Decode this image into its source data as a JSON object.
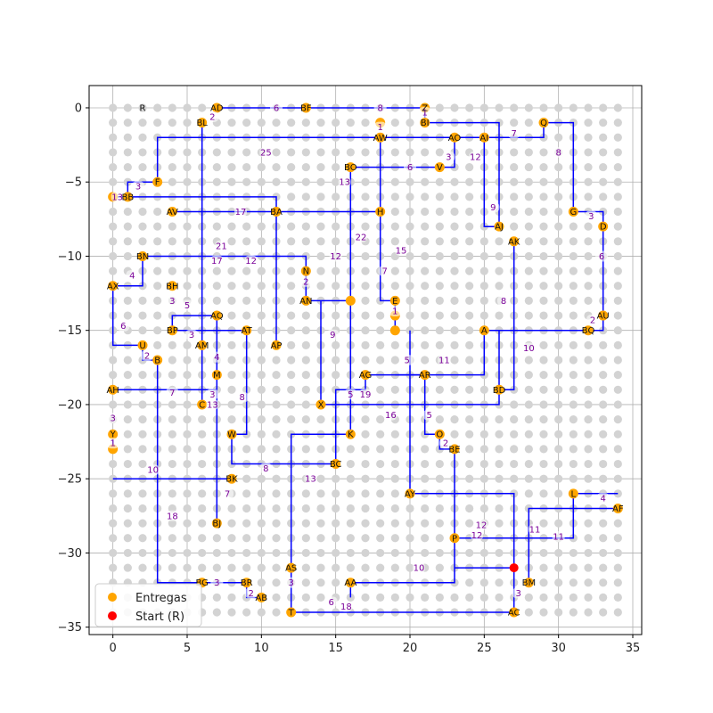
{
  "chart_data": {
    "type": "scatter",
    "title": "",
    "xlabel": "",
    "ylabel": "",
    "xlim": [
      -1.6,
      35.6
    ],
    "ylim": [
      -35.5,
      1.5
    ],
    "x_ticks": [
      0,
      5,
      10,
      15,
      20,
      25,
      30,
      35
    ],
    "y_ticks": [
      0,
      -5,
      -10,
      -15,
      -20,
      -25,
      -30,
      -35
    ],
    "grid": true,
    "legend_position": "lower-left",
    "colors": {
      "route": "#0000ff",
      "delivery": "#ffa500",
      "start": "#ff0000",
      "grid_dot": "#d3d3d3",
      "edge_label": "#7a0099"
    },
    "legend": [
      {
        "label": "Entregas",
        "color": "#ffa500"
      },
      {
        "label": "Start (R)",
        "color": "#ff0000"
      }
    ],
    "start": {
      "name": "R",
      "x": 27,
      "y": -31
    },
    "start_label": {
      "text": "R",
      "x": 2,
      "y": 0
    },
    "points": [
      {
        "name": "AD",
        "x": 7,
        "y": 0
      },
      {
        "name": "BF",
        "x": 13,
        "y": 0
      },
      {
        "name": "Z",
        "x": 21,
        "y": 0
      },
      {
        "name": "BL",
        "x": 6,
        "y": -1
      },
      {
        "name": "BI",
        "x": 21,
        "y": -1
      },
      {
        "name": "Q",
        "x": 29,
        "y": -1
      },
      {
        "name": "AW",
        "x": 18,
        "y": -2
      },
      {
        "name": "AO",
        "x": 23,
        "y": -2
      },
      {
        "name": "AI",
        "x": 25,
        "y": -2
      },
      {
        "name": "BO",
        "x": 16,
        "y": -4
      },
      {
        "name": "V",
        "x": 22,
        "y": -4
      },
      {
        "name": "F",
        "x": 3,
        "y": -5
      },
      {
        "name": "BB",
        "x": 1,
        "y": -6
      },
      {
        "name": "AV",
        "x": 4,
        "y": -7
      },
      {
        "name": "BA",
        "x": 11,
        "y": -7
      },
      {
        "name": "H",
        "x": 18,
        "y": -7
      },
      {
        "name": "G",
        "x": 31,
        "y": -7
      },
      {
        "name": "D",
        "x": 33,
        "y": -8
      },
      {
        "name": "AJ",
        "x": 26,
        "y": -8
      },
      {
        "name": "AK",
        "x": 27,
        "y": -9
      },
      {
        "name": "BN",
        "x": 2,
        "y": -10
      },
      {
        "name": "N",
        "x": 13,
        "y": -11
      },
      {
        "name": "AX",
        "x": 0,
        "y": -12
      },
      {
        "name": "BH",
        "x": 4,
        "y": -12
      },
      {
        "name": "AN",
        "x": 13,
        "y": -13
      },
      {
        "name": "E",
        "x": 19,
        "y": -13
      },
      {
        "name": "AQ",
        "x": 7,
        "y": -14
      },
      {
        "name": "AU",
        "x": 33,
        "y": -14
      },
      {
        "name": "BP",
        "x": 4,
        "y": -15
      },
      {
        "name": "AT",
        "x": 9,
        "y": -15
      },
      {
        "name": "A",
        "x": 25,
        "y": -15
      },
      {
        "name": "BQ",
        "x": 32,
        "y": -15
      },
      {
        "name": "U",
        "x": 2,
        "y": -16
      },
      {
        "name": "AM",
        "x": 6,
        "y": -16
      },
      {
        "name": "AP",
        "x": 11,
        "y": -16
      },
      {
        "name": "B",
        "x": 3,
        "y": -17
      },
      {
        "name": "M",
        "x": 7,
        "y": -18
      },
      {
        "name": "AG",
        "x": 17,
        "y": -18
      },
      {
        "name": "AR",
        "x": 21,
        "y": -18
      },
      {
        "name": "AH",
        "x": 0,
        "y": -19
      },
      {
        "name": "BD",
        "x": 26,
        "y": -19
      },
      {
        "name": "C",
        "x": 6,
        "y": -20
      },
      {
        "name": "X",
        "x": 14,
        "y": -20
      },
      {
        "name": "Y",
        "x": 0,
        "y": -22
      },
      {
        "name": "W",
        "x": 8,
        "y": -22
      },
      {
        "name": "K",
        "x": 16,
        "y": -22
      },
      {
        "name": "O",
        "x": 22,
        "y": -22
      },
      {
        "name": "BE",
        "x": 23,
        "y": -23
      },
      {
        "name": "BC",
        "x": 15,
        "y": -24
      },
      {
        "name": "BK",
        "x": 8,
        "y": -25
      },
      {
        "name": "AY",
        "x": 20,
        "y": -26
      },
      {
        "name": "L",
        "x": 31,
        "y": -26
      },
      {
        "name": "AF",
        "x": 34,
        "y": -27
      },
      {
        "name": "BJ",
        "x": 7,
        "y": -28
      },
      {
        "name": "P",
        "x": 23,
        "y": -29
      },
      {
        "name": "AS",
        "x": 12,
        "y": -31
      },
      {
        "name": "BG",
        "x": 6,
        "y": -32
      },
      {
        "name": "BR",
        "x": 9,
        "y": -32
      },
      {
        "name": "AA",
        "x": 16,
        "y": -32
      },
      {
        "name": "BM",
        "x": 28,
        "y": -32
      },
      {
        "name": "AB",
        "x": 10,
        "y": -33
      },
      {
        "name": "T",
        "x": 12,
        "y": -34
      },
      {
        "name": "AC",
        "x": 27,
        "y": -34
      },
      {
        "name": "",
        "x": 0,
        "y": -6
      },
      {
        "name": "",
        "x": 18,
        "y": -1
      },
      {
        "name": "",
        "x": 16,
        "y": -13
      },
      {
        "name": "",
        "x": 0,
        "y": -23
      },
      {
        "name": "",
        "x": 19,
        "y": -14
      },
      {
        "name": "",
        "x": 19,
        "y": -15
      }
    ],
    "route": [
      [
        [
          7,
          0
        ],
        [
          21,
          0
        ],
        [
          21,
          -1
        ],
        [
          26,
          -1
        ],
        [
          26,
          -8
        ],
        [
          25,
          -8
        ],
        [
          25,
          -2
        ]
      ],
      [
        [
          3,
          -5
        ],
        [
          3,
          -2
        ],
        [
          29,
          -2
        ],
        [
          29,
          -1
        ],
        [
          31,
          -1
        ],
        [
          31,
          -7
        ],
        [
          33,
          -7
        ],
        [
          33,
          -14
        ],
        [
          33,
          -15
        ],
        [
          25,
          -15
        ],
        [
          25,
          -18
        ],
        [
          17,
          -18
        ],
        [
          17,
          -19
        ],
        [
          15,
          -19
        ],
        [
          15,
          -24
        ],
        [
          8,
          -24
        ],
        [
          8,
          -22
        ],
        [
          9,
          -22
        ],
        [
          9,
          -15
        ],
        [
          4,
          -15
        ],
        [
          4,
          -14
        ],
        [
          7,
          -14
        ],
        [
          7,
          -28
        ]
      ],
      [
        [
          1,
          -6
        ],
        [
          1,
          -5
        ],
        [
          3,
          -5
        ]
      ],
      [
        [
          0,
          -6
        ],
        [
          11,
          -6
        ],
        [
          11,
          -16
        ]
      ],
      [
        [
          4,
          -7
        ],
        [
          18,
          -7
        ],
        [
          18,
          -13
        ],
        [
          19,
          -13
        ],
        [
          19,
          -15
        ]
      ],
      [
        [
          6,
          -1
        ],
        [
          6,
          -20
        ]
      ],
      [
        [
          16,
          -4
        ],
        [
          23,
          -4
        ],
        [
          23,
          -2
        ]
      ],
      [
        [
          18,
          -2
        ],
        [
          18,
          -7
        ]
      ],
      [
        [
          16,
          -4
        ],
        [
          16,
          -22
        ],
        [
          12,
          -22
        ],
        [
          12,
          -34
        ],
        [
          27,
          -34
        ],
        [
          27,
          -31
        ]
      ],
      [
        [
          2,
          -10
        ],
        [
          13,
          -10
        ],
        [
          13,
          -13
        ],
        [
          16,
          -13
        ]
      ],
      [
        [
          14,
          -13
        ],
        [
          14,
          -20
        ],
        [
          26,
          -20
        ],
        [
          26,
          -15
        ]
      ],
      [
        [
          0,
          -12
        ],
        [
          2,
          -12
        ],
        [
          2,
          -10
        ]
      ],
      [
        [
          0,
          -12
        ],
        [
          0,
          -16
        ],
        [
          2,
          -16
        ],
        [
          2,
          -17
        ],
        [
          3,
          -17
        ],
        [
          3,
          -32
        ],
        [
          9,
          -32
        ],
        [
          9,
          -33
        ],
        [
          10,
          -33
        ]
      ],
      [
        [
          20,
          -15
        ],
        [
          20,
          -26
        ],
        [
          27,
          -26
        ],
        [
          27,
          -31
        ]
      ],
      [
        [
          19,
          -18
        ],
        [
          21,
          -18
        ],
        [
          21,
          -22
        ],
        [
          22,
          -22
        ],
        [
          22,
          -23
        ],
        [
          23,
          -23
        ],
        [
          23,
          -32
        ],
        [
          16,
          -32
        ],
        [
          16,
          -33
        ]
      ],
      [
        [
          27,
          -9
        ],
        [
          27,
          -19
        ],
        [
          26,
          -19
        ]
      ],
      [
        [
          0,
          -19
        ],
        [
          7,
          -19
        ]
      ],
      [
        [
          0,
          -22
        ],
        [
          0,
          -23
        ]
      ],
      [
        [
          0,
          -25
        ],
        [
          8,
          -25
        ]
      ],
      [
        [
          34,
          -26
        ],
        [
          31,
          -26
        ],
        [
          31,
          -29
        ],
        [
          23,
          -29
        ]
      ],
      [
        [
          34,
          -27
        ],
        [
          28,
          -27
        ],
        [
          28,
          -32
        ]
      ],
      [
        [
          23,
          -31
        ],
        [
          27,
          -31
        ]
      ]
    ],
    "edge_labels": [
      {
        "text": "6",
        "x": 11,
        "y": 0
      },
      {
        "text": "8",
        "x": 18,
        "y": 0
      },
      {
        "text": "2",
        "x": 6.7,
        "y": -0.6
      },
      {
        "text": "1",
        "x": 21,
        "y": -0.3
      },
      {
        "text": "1",
        "x": 18,
        "y": -1.3
      },
      {
        "text": "7",
        "x": 27,
        "y": -1.7
      },
      {
        "text": "8",
        "x": 30,
        "y": -3
      },
      {
        "text": "25",
        "x": 10.3,
        "y": -3
      },
      {
        "text": "3",
        "x": 22.6,
        "y": -3.3
      },
      {
        "text": "12",
        "x": 24.4,
        "y": -3.3
      },
      {
        "text": "6",
        "x": 20,
        "y": -4
      },
      {
        "text": "3",
        "x": 1.7,
        "y": -5.3
      },
      {
        "text": "13",
        "x": 15.6,
        "y": -5
      },
      {
        "text": "13",
        "x": 0.3,
        "y": -6
      },
      {
        "text": "9",
        "x": 25.6,
        "y": -6.7
      },
      {
        "text": "17",
        "x": 8.6,
        "y": -7
      },
      {
        "text": "3",
        "x": 32.2,
        "y": -7.3
      },
      {
        "text": "22",
        "x": 16.7,
        "y": -8.7
      },
      {
        "text": "21",
        "x": 7.3,
        "y": -9.3
      },
      {
        "text": "15",
        "x": 19.4,
        "y": -9.6
      },
      {
        "text": "17",
        "x": 7,
        "y": -10.3
      },
      {
        "text": "12",
        "x": 9.3,
        "y": -10.3
      },
      {
        "text": "12",
        "x": 15,
        "y": -10
      },
      {
        "text": "6",
        "x": 32.9,
        "y": -10
      },
      {
        "text": "4",
        "x": 1.3,
        "y": -11.3
      },
      {
        "text": "7",
        "x": 18.3,
        "y": -11
      },
      {
        "text": "2",
        "x": 13,
        "y": -11.7
      },
      {
        "text": "3",
        "x": 4,
        "y": -13
      },
      {
        "text": "5",
        "x": 5,
        "y": -13.3
      },
      {
        "text": "8",
        "x": 26.3,
        "y": -13
      },
      {
        "text": "1",
        "x": 19,
        "y": -13.7
      },
      {
        "text": "6",
        "x": 0.7,
        "y": -14.7
      },
      {
        "text": "2",
        "x": 32.3,
        "y": -14.3
      },
      {
        "text": "3",
        "x": 5.3,
        "y": -15.3
      },
      {
        "text": "9",
        "x": 14.8,
        "y": -15.3
      },
      {
        "text": "10",
        "x": 28,
        "y": -16.2
      },
      {
        "text": "2",
        "x": 2.3,
        "y": -16.7
      },
      {
        "text": "4",
        "x": 7,
        "y": -16.8
      },
      {
        "text": "5",
        "x": 19.8,
        "y": -17
      },
      {
        "text": "11",
        "x": 22.3,
        "y": -17
      },
      {
        "text": "7",
        "x": 4,
        "y": -19.2
      },
      {
        "text": "3",
        "x": 6.7,
        "y": -19.3
      },
      {
        "text": "8",
        "x": 8.7,
        "y": -19.5
      },
      {
        "text": "5",
        "x": 16,
        "y": -19.3
      },
      {
        "text": "19",
        "x": 17,
        "y": -19.3
      },
      {
        "text": "13",
        "x": 6.7,
        "y": -20
      },
      {
        "text": "16",
        "x": 18.7,
        "y": -20.7
      },
      {
        "text": "5",
        "x": 21.3,
        "y": -20.7
      },
      {
        "text": "3",
        "x": 0,
        "y": -20.9
      },
      {
        "text": "1",
        "x": 0,
        "y": -22.6
      },
      {
        "text": "2",
        "x": 22.4,
        "y": -22.6
      },
      {
        "text": "10",
        "x": 2.7,
        "y": -24.4
      },
      {
        "text": "8",
        "x": 10.3,
        "y": -24.3
      },
      {
        "text": "13",
        "x": 13.3,
        "y": -25
      },
      {
        "text": "7",
        "x": 7.7,
        "y": -26
      },
      {
        "text": "4",
        "x": 33,
        "y": -26.3
      },
      {
        "text": "18",
        "x": 4,
        "y": -27.5
      },
      {
        "text": "12",
        "x": 24.8,
        "y": -28.1
      },
      {
        "text": "11",
        "x": 28.4,
        "y": -28.4
      },
      {
        "text": "12",
        "x": 24.5,
        "y": -28.8
      },
      {
        "text": "11",
        "x": 30,
        "y": -28.9
      },
      {
        "text": "10",
        "x": 20.6,
        "y": -31
      },
      {
        "text": "3",
        "x": 7,
        "y": -32
      },
      {
        "text": "3",
        "x": 12,
        "y": -32
      },
      {
        "text": "2",
        "x": 9.3,
        "y": -32.7
      },
      {
        "text": "3",
        "x": 27.3,
        "y": -32.7
      },
      {
        "text": "6",
        "x": 14.7,
        "y": -33.3
      },
      {
        "text": "18",
        "x": 15.7,
        "y": -33.6
      }
    ]
  }
}
